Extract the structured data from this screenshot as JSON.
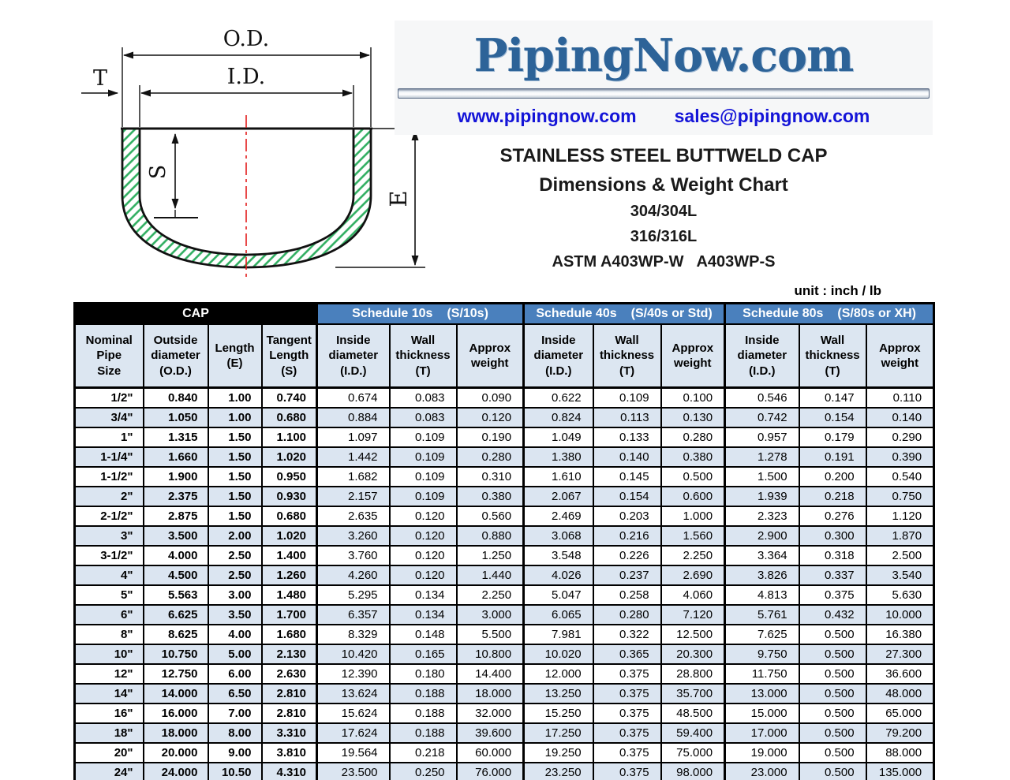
{
  "brand": {
    "logo": "PipingNow.com",
    "website": "www.pipingnow.com",
    "email": "sales@pipingnow.com"
  },
  "titles": {
    "main": "STAINLESS STEEL BUTTWELD CAP",
    "sub": "Dimensions & Weight Chart",
    "grade1": "304/304L",
    "grade2": "316/316L",
    "astm": "ASTM A403WP-W   A403WP-S"
  },
  "diagram": {
    "labels": {
      "od": "O.D.",
      "id": "I.D.",
      "t": "T",
      "s": "S",
      "e": "E"
    }
  },
  "colors": {
    "logo_blue": "#2d6398",
    "link_blue": "#1414d8",
    "schedule_header_blue": "#4a80bd",
    "cap_header_black": "#000000",
    "row_stripe_blue": "#dbe5f1",
    "column_header_bg": "#dce6f1",
    "hatch_green": "#2fae60",
    "centerline_red": "#e31c1c"
  },
  "table": {
    "unit_note": "unit : inch / lb",
    "groups": [
      {
        "label": "CAP",
        "tag": ""
      },
      {
        "label": "Schedule 10s",
        "tag": "(S/10s)"
      },
      {
        "label": "Schedule 40s",
        "tag": "(S/40s or Std)"
      },
      {
        "label": "Schedule 80s",
        "tag": "(S/80s or XH)"
      }
    ],
    "columns": [
      {
        "key": "nominal-pipe-size",
        "lines": [
          "Nominal",
          "Pipe",
          "Size"
        ]
      },
      {
        "key": "outside-diameter",
        "lines": [
          "Outside",
          "diameter",
          "(O.D.)"
        ]
      },
      {
        "key": "length-e",
        "lines": [
          "Length",
          "(E)"
        ]
      },
      {
        "key": "tangent-length-s",
        "lines": [
          "Tangent",
          "Length",
          "(S)"
        ]
      },
      {
        "key": "sch10-inside-diameter",
        "lines": [
          "Inside",
          "diameter",
          "(I.D.)"
        ]
      },
      {
        "key": "sch10-wall-thickness",
        "lines": [
          "Wall",
          "thickness",
          "(T)"
        ]
      },
      {
        "key": "sch10-approx-weight",
        "lines": [
          "Approx",
          "weight"
        ]
      },
      {
        "key": "sch40-inside-diameter",
        "lines": [
          "Inside",
          "diameter",
          "(I.D.)"
        ]
      },
      {
        "key": "sch40-wall-thickness",
        "lines": [
          "Wall",
          "thickness",
          "(T)"
        ]
      },
      {
        "key": "sch40-approx-weight",
        "lines": [
          "Approx",
          "weight"
        ]
      },
      {
        "key": "sch80-inside-diameter",
        "lines": [
          "Inside",
          "diameter",
          "(I.D.)"
        ]
      },
      {
        "key": "sch80-wall-thickness",
        "lines": [
          "Wall",
          "thickness",
          "(T)"
        ]
      },
      {
        "key": "sch80-approx-weight",
        "lines": [
          "Approx",
          "weight"
        ]
      }
    ],
    "rows": [
      [
        "1/2\"",
        "0.840",
        "1.00",
        "0.740",
        "0.674",
        "0.083",
        "0.090",
        "0.622",
        "0.109",
        "0.100",
        "0.546",
        "0.147",
        "0.110"
      ],
      [
        "3/4\"",
        "1.050",
        "1.00",
        "0.680",
        "0.884",
        "0.083",
        "0.120",
        "0.824",
        "0.113",
        "0.130",
        "0.742",
        "0.154",
        "0.140"
      ],
      [
        "1\"",
        "1.315",
        "1.50",
        "1.100",
        "1.097",
        "0.109",
        "0.190",
        "1.049",
        "0.133",
        "0.280",
        "0.957",
        "0.179",
        "0.290"
      ],
      [
        "1-1/4\"",
        "1.660",
        "1.50",
        "1.020",
        "1.442",
        "0.109",
        "0.280",
        "1.380",
        "0.140",
        "0.380",
        "1.278",
        "0.191",
        "0.390"
      ],
      [
        "1-1/2\"",
        "1.900",
        "1.50",
        "0.950",
        "1.682",
        "0.109",
        "0.310",
        "1.610",
        "0.145",
        "0.500",
        "1.500",
        "0.200",
        "0.540"
      ],
      [
        "2\"",
        "2.375",
        "1.50",
        "0.930",
        "2.157",
        "0.109",
        "0.380",
        "2.067",
        "0.154",
        "0.600",
        "1.939",
        "0.218",
        "0.750"
      ],
      [
        "2-1/2\"",
        "2.875",
        "1.50",
        "0.680",
        "2.635",
        "0.120",
        "0.560",
        "2.469",
        "0.203",
        "1.000",
        "2.323",
        "0.276",
        "1.120"
      ],
      [
        "3\"",
        "3.500",
        "2.00",
        "1.020",
        "3.260",
        "0.120",
        "0.880",
        "3.068",
        "0.216",
        "1.560",
        "2.900",
        "0.300",
        "1.870"
      ],
      [
        "3-1/2\"",
        "4.000",
        "2.50",
        "1.400",
        "3.760",
        "0.120",
        "1.250",
        "3.548",
        "0.226",
        "2.250",
        "3.364",
        "0.318",
        "2.500"
      ],
      [
        "4\"",
        "4.500",
        "2.50",
        "1.260",
        "4.260",
        "0.120",
        "1.440",
        "4.026",
        "0.237",
        "2.690",
        "3.826",
        "0.337",
        "3.540"
      ],
      [
        "5\"",
        "5.563",
        "3.00",
        "1.480",
        "5.295",
        "0.134",
        "2.250",
        "5.047",
        "0.258",
        "4.060",
        "4.813",
        "0.375",
        "5.630"
      ],
      [
        "6\"",
        "6.625",
        "3.50",
        "1.700",
        "6.357",
        "0.134",
        "3.000",
        "6.065",
        "0.280",
        "7.120",
        "5.761",
        "0.432",
        "10.000"
      ],
      [
        "8\"",
        "8.625",
        "4.00",
        "1.680",
        "8.329",
        "0.148",
        "5.500",
        "7.981",
        "0.322",
        "12.500",
        "7.625",
        "0.500",
        "16.380"
      ],
      [
        "10\"",
        "10.750",
        "5.00",
        "2.130",
        "10.420",
        "0.165",
        "10.800",
        "10.020",
        "0.365",
        "20.300",
        "9.750",
        "0.500",
        "27.300"
      ],
      [
        "12\"",
        "12.750",
        "6.00",
        "2.630",
        "12.390",
        "0.180",
        "14.400",
        "12.000",
        "0.375",
        "28.800",
        "11.750",
        "0.500",
        "36.600"
      ],
      [
        "14\"",
        "14.000",
        "6.50",
        "2.810",
        "13.624",
        "0.188",
        "18.000",
        "13.250",
        "0.375",
        "35.700",
        "13.000",
        "0.500",
        "48.000"
      ],
      [
        "16\"",
        "16.000",
        "7.00",
        "2.810",
        "15.624",
        "0.188",
        "32.000",
        "15.250",
        "0.375",
        "48.500",
        "15.000",
        "0.500",
        "65.000"
      ],
      [
        "18\"",
        "18.000",
        "8.00",
        "3.310",
        "17.624",
        "0.188",
        "39.600",
        "17.250",
        "0.375",
        "59.400",
        "17.000",
        "0.500",
        "79.200"
      ],
      [
        "20\"",
        "20.000",
        "9.00",
        "3.810",
        "19.564",
        "0.218",
        "60.000",
        "19.250",
        "0.375",
        "75.000",
        "19.000",
        "0.500",
        "88.000"
      ],
      [
        "24\"",
        "24.000",
        "10.50",
        "4.310",
        "23.500",
        "0.250",
        "76.000",
        "23.250",
        "0.375",
        "98.000",
        "23.000",
        "0.500",
        "135.000"
      ]
    ]
  }
}
